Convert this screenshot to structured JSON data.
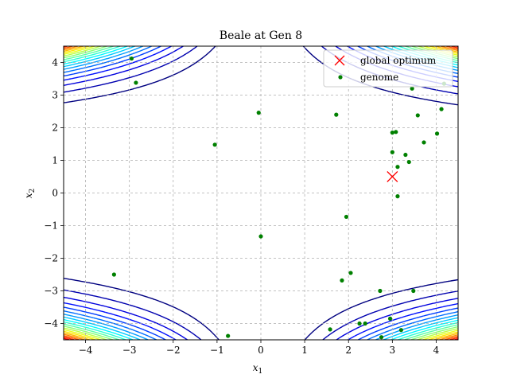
{
  "chart_data": {
    "type": "scatter",
    "title": "Beale at Gen 8",
    "xlabel": "x",
    "xlabel_sub": "1",
    "ylabel": "x",
    "ylabel_sub": "2",
    "xlim": [
      -4.5,
      4.5
    ],
    "ylim": [
      -4.5,
      4.5
    ],
    "xticks": [
      -4,
      -3,
      -2,
      -1,
      0,
      1,
      2,
      3,
      4
    ],
    "yticks": [
      -4,
      -3,
      -2,
      -1,
      0,
      1,
      2,
      3,
      4
    ],
    "tick_labels_x": [
      "−4",
      "−3",
      "−2",
      "−1",
      "0",
      "1",
      "2",
      "3",
      "4"
    ],
    "tick_labels_y": [
      "−4",
      "−3",
      "−2",
      "−1",
      "0",
      "1",
      "2",
      "3",
      "4"
    ],
    "grid": true,
    "legend_position": "top-right",
    "legend": [
      {
        "label": "global optimum",
        "marker": "x",
        "color": "#ff0000"
      },
      {
        "label": "genome",
        "marker": "dot",
        "color": "#008000"
      }
    ],
    "contour": {
      "function": "beale",
      "colormap": "jet"
    },
    "optimum": {
      "x": 3,
      "y": 0.5
    },
    "series": [
      {
        "name": "genome",
        "color": "#008000",
        "points": [
          [
            -2.95,
            4.12
          ],
          [
            -2.85,
            3.38
          ],
          [
            -0.05,
            2.46
          ],
          [
            -1.05,
            1.48
          ],
          [
            0.0,
            -1.33
          ],
          [
            -3.35,
            -2.5
          ],
          [
            -0.75,
            -4.38
          ],
          [
            1.72,
            2.4
          ],
          [
            1.95,
            -0.73
          ],
          [
            2.05,
            -2.45
          ],
          [
            1.85,
            -2.68
          ],
          [
            1.58,
            -4.18
          ],
          [
            2.25,
            -4.0
          ],
          [
            2.38,
            -4.0
          ],
          [
            2.72,
            -3.0
          ],
          [
            2.75,
            -4.42
          ],
          [
            2.95,
            -3.85
          ],
          [
            3.2,
            -4.2
          ],
          [
            3.48,
            -3.0
          ],
          [
            3.0,
            1.85
          ],
          [
            3.08,
            1.87
          ],
          [
            3.0,
            1.25
          ],
          [
            3.12,
            0.8
          ],
          [
            3.12,
            -0.1
          ],
          [
            3.3,
            1.17
          ],
          [
            3.38,
            0.95
          ],
          [
            3.58,
            2.38
          ],
          [
            3.72,
            1.55
          ],
          [
            4.02,
            1.82
          ],
          [
            4.12,
            2.57
          ],
          [
            4.18,
            3.35
          ],
          [
            3.45,
            3.2
          ]
        ]
      }
    ]
  }
}
